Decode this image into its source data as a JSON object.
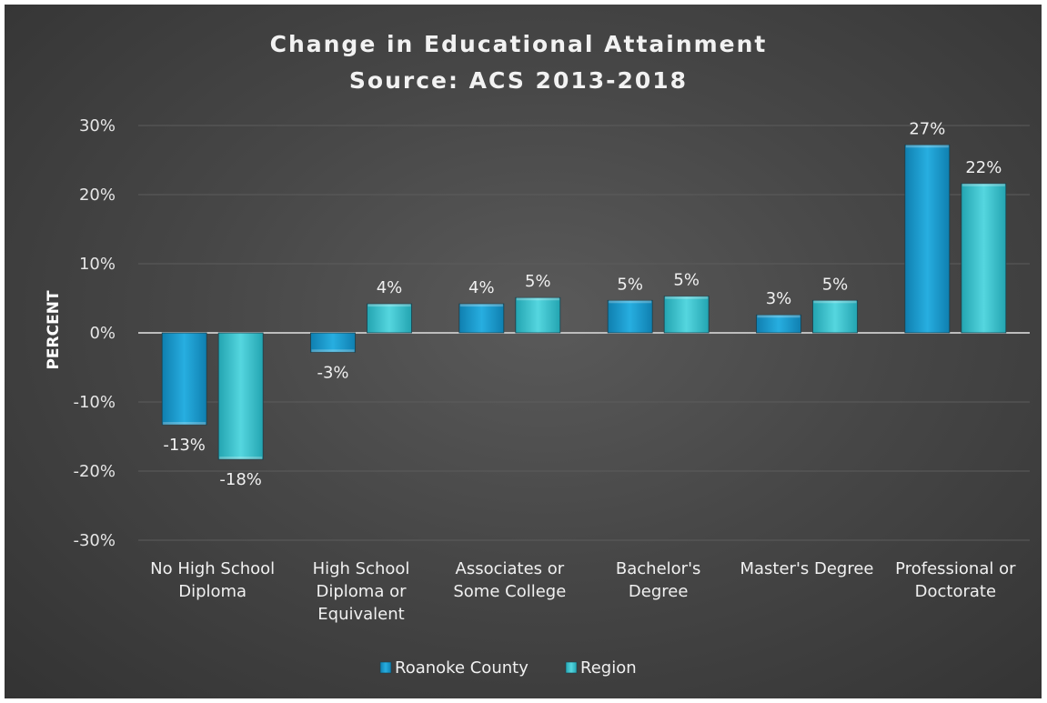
{
  "chart_data": {
    "type": "bar",
    "title": "Change in Educational Attainment",
    "subtitle": "Source: ACS 2013-2018",
    "ylabel": "PERCENT",
    "xlabel": "",
    "ylim": [
      -30,
      30
    ],
    "yticks": [
      30,
      20,
      10,
      0,
      -10,
      -20,
      -30
    ],
    "ytick_labels": [
      "30%",
      "20%",
      "10%",
      "0%",
      "-10%",
      "-20%",
      "-30%"
    ],
    "grid": true,
    "legend_position": "bottom",
    "categories": [
      [
        "No High School",
        "Diploma"
      ],
      [
        "High School",
        "Diploma or",
        "Equivalent"
      ],
      [
        "Associates or",
        "Some College"
      ],
      [
        "Bachelor's",
        "Degree"
      ],
      [
        "Master's Degree"
      ],
      [
        "Professional or",
        "Doctorate"
      ]
    ],
    "series": [
      {
        "name": "Roanoke County",
        "color": "#1f9fd0",
        "values": [
          -13.3,
          -2.8,
          4.2,
          4.7,
          2.6,
          27.2
        ],
        "labels": [
          "-13%",
          "-3%",
          "4%",
          "5%",
          "3%",
          "27%"
        ]
      },
      {
        "name": "Region",
        "color": "#3ec4cf",
        "values": [
          -18.3,
          4.2,
          5.1,
          5.3,
          4.7,
          21.6
        ],
        "labels": [
          "-18%",
          "4%",
          "5%",
          "5%",
          "5%",
          "22%"
        ]
      }
    ]
  }
}
